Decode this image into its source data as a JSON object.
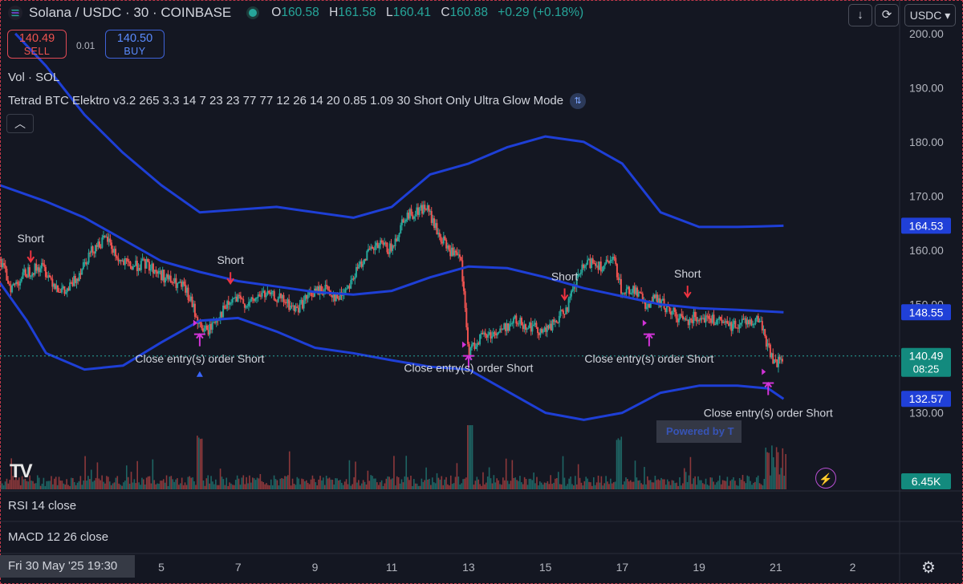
{
  "header": {
    "title": "Solana / USDC · 30 · COINBASE",
    "ohlc": {
      "o_label": "O",
      "o": "160.58",
      "h_label": "H",
      "h": "161.58",
      "l_label": "L",
      "l": "160.41",
      "c_label": "C",
      "c": "160.88",
      "change": "+0.29 (+0.18%)"
    },
    "currency": "USDC"
  },
  "trade": {
    "sell_price": "140.49",
    "sell_label": "SELL",
    "spread": "0.01",
    "buy_price": "140.50",
    "buy_label": "BUY"
  },
  "indicators": {
    "vol": "Vol · SOL",
    "strategy": "Tetrad BTC Elektro v3.2 265 3.3 14 7 23 23 77 77 12 26 14 20 0.85 1.09 30 Short Only Ultra Glow Mode"
  },
  "panes": {
    "rsi": "RSI 14 close",
    "macd": "MACD 12 26 close"
  },
  "timebar": {
    "cursor_date": "Fri 30 May '25   19:30"
  },
  "tooltip": "Powered by T",
  "colors": {
    "up": "#26a69a",
    "down": "#ef5350",
    "band": "#1e3fd6",
    "marker": "#d233d8",
    "blue_label": "#2040d8",
    "teal_label": "#138a7e"
  },
  "chart_data": {
    "type": "candlestick",
    "symbol": "Solana / USDC",
    "interval": "30",
    "exchange": "COINBASE",
    "y_ticks": [
      130,
      140,
      150,
      160,
      170,
      180,
      190,
      200
    ],
    "y_tick_labels": [
      "130.00",
      "140.00",
      "150.00",
      "160.00",
      "170.00",
      "180.00",
      "190.00",
      "200.00"
    ],
    "ylim": [
      125.5,
      201
    ],
    "x_ticks": [
      {
        "label": "5",
        "d": 5
      },
      {
        "label": "7",
        "d": 7
      },
      {
        "label": "9",
        "d": 9
      },
      {
        "label": "11",
        "d": 11
      },
      {
        "label": "13",
        "d": 13
      },
      {
        "label": "15",
        "d": 15
      },
      {
        "label": "17",
        "d": 17
      },
      {
        "label": "19",
        "d": 19
      },
      {
        "label": "21",
        "d": 21
      },
      {
        "label": "2",
        "d": 23
      }
    ],
    "xlim": [
      0.8,
      24.2
    ],
    "price_labels": [
      {
        "text": "164.53",
        "value": 164.53,
        "color": "blue"
      },
      {
        "text": "148.55",
        "value": 148.55,
        "color": "blue"
      },
      {
        "text": "140.49",
        "value": 140.49,
        "color": "teal",
        "sub": "08:25"
      },
      {
        "text": "132.57",
        "value": 132.57,
        "color": "blue"
      }
    ],
    "volume_label": "6.45K",
    "current_price": 140.49,
    "price_path": [
      [
        0.8,
        158
      ],
      [
        1.1,
        153
      ],
      [
        1.5,
        156
      ],
      [
        1.9,
        157
      ],
      [
        2.2,
        154
      ],
      [
        2.5,
        152
      ],
      [
        2.8,
        155
      ],
      [
        3.0,
        158
      ],
      [
        3.3,
        161
      ],
      [
        3.6,
        162
      ],
      [
        3.9,
        158
      ],
      [
        4.2,
        157
      ],
      [
        4.6,
        157.5
      ],
      [
        4.9,
        156
      ],
      [
        5.3,
        154
      ],
      [
        5.6,
        153
      ],
      [
        5.8,
        150
      ],
      [
        6.0,
        146
      ],
      [
        6.2,
        145
      ],
      [
        6.5,
        148
      ],
      [
        6.9,
        151
      ],
      [
        7.3,
        150
      ],
      [
        7.6,
        152
      ],
      [
        8.1,
        151
      ],
      [
        8.5,
        149
      ],
      [
        8.9,
        152
      ],
      [
        9.3,
        153
      ],
      [
        9.6,
        151
      ],
      [
        10.0,
        155
      ],
      [
        10.3,
        159
      ],
      [
        10.7,
        161
      ],
      [
        11.0,
        160
      ],
      [
        11.3,
        166
      ],
      [
        11.6,
        167
      ],
      [
        11.9,
        168
      ],
      [
        12.2,
        163
      ],
      [
        12.5,
        160
      ],
      [
        12.8,
        158
      ],
      [
        13.0,
        141
      ],
      [
        13.3,
        144
      ],
      [
        13.8,
        145
      ],
      [
        14.2,
        147
      ],
      [
        14.6,
        146
      ],
      [
        15.0,
        145
      ],
      [
        15.3,
        147
      ],
      [
        15.6,
        150
      ],
      [
        15.9,
        156
      ],
      [
        16.2,
        158
      ],
      [
        16.5,
        157
      ],
      [
        16.8,
        158
      ],
      [
        17.0,
        152
      ],
      [
        17.3,
        153
      ],
      [
        17.6,
        150
      ],
      [
        17.9,
        151
      ],
      [
        18.2,
        149
      ],
      [
        18.6,
        147
      ],
      [
        19.0,
        148
      ],
      [
        19.4,
        147
      ],
      [
        19.8,
        146
      ],
      [
        20.2,
        147
      ],
      [
        20.6,
        147
      ],
      [
        20.8,
        142
      ],
      [
        21.0,
        139
      ],
      [
        21.2,
        140.5
      ]
    ],
    "bands": {
      "upper": [
        [
          1.2,
          200
        ],
        [
          2,
          194
        ],
        [
          3,
          185
        ],
        [
          4,
          178
        ],
        [
          5,
          172
        ],
        [
          6,
          167
        ],
        [
          7,
          167.5
        ],
        [
          8,
          168
        ],
        [
          9,
          167
        ],
        [
          10,
          166
        ],
        [
          11,
          168
        ],
        [
          12,
          174
        ],
        [
          13,
          176
        ],
        [
          14,
          179
        ],
        [
          15,
          181
        ],
        [
          16,
          180
        ],
        [
          17,
          176
        ],
        [
          18,
          167
        ],
        [
          19,
          164.3
        ],
        [
          20,
          164.3
        ],
        [
          20.6,
          164.4
        ],
        [
          21.2,
          164.53
        ]
      ],
      "middle": [
        [
          0.8,
          172
        ],
        [
          2,
          169
        ],
        [
          3,
          166
        ],
        [
          4,
          162
        ],
        [
          5,
          158
        ],
        [
          6,
          156
        ],
        [
          7,
          154.3
        ],
        [
          8,
          153.3
        ],
        [
          9,
          152.3
        ],
        [
          10,
          151.8
        ],
        [
          11,
          152.5
        ],
        [
          12,
          155
        ],
        [
          13,
          157
        ],
        [
          14,
          156.7
        ],
        [
          15,
          155
        ],
        [
          16,
          153
        ],
        [
          17,
          151.5
        ],
        [
          18,
          150
        ],
        [
          19,
          149.3
        ],
        [
          20,
          149
        ],
        [
          21.2,
          148.55
        ]
      ],
      "lower": [
        [
          0.8,
          154
        ],
        [
          1.5,
          147
        ],
        [
          2,
          141
        ],
        [
          3,
          138
        ],
        [
          4,
          138.7
        ],
        [
          5,
          143
        ],
        [
          6,
          147
        ],
        [
          7,
          147.5
        ],
        [
          8,
          145
        ],
        [
          9,
          142
        ],
        [
          10,
          141
        ],
        [
          11,
          139.7
        ],
        [
          12,
          138.5
        ],
        [
          13,
          138
        ],
        [
          14,
          134
        ],
        [
          15,
          130
        ],
        [
          16,
          128.7
        ],
        [
          17,
          130
        ],
        [
          18,
          133.7
        ],
        [
          19,
          135
        ],
        [
          20,
          135
        ],
        [
          20.8,
          134.5
        ],
        [
          21.2,
          132.57
        ]
      ]
    },
    "annotations": [
      {
        "type": "short",
        "label": "Short",
        "x": 1.6,
        "y": 157
      },
      {
        "type": "short",
        "label": "Short",
        "x": 6.8,
        "y": 153
      },
      {
        "type": "short",
        "label": "Short",
        "x": 15.5,
        "y": 150
      },
      {
        "type": "short",
        "label": "Short",
        "x": 18.7,
        "y": 150.5
      },
      {
        "type": "close",
        "label": "Close entry(s) order Short",
        "x": 6.0,
        "y": 144.5,
        "label_y": 139.3
      },
      {
        "type": "close",
        "label": "Close entry(s) order Short",
        "x": 13.0,
        "y": 140.5,
        "label_y": 137.6
      },
      {
        "type": "close",
        "label": "Close entry(s) order Short",
        "x": 17.7,
        "y": 144.5,
        "label_y": 139.3
      },
      {
        "type": "close",
        "label": "Close entry(s) order Short",
        "x": 20.8,
        "y": 135.5,
        "label_y": 129.3
      }
    ]
  }
}
